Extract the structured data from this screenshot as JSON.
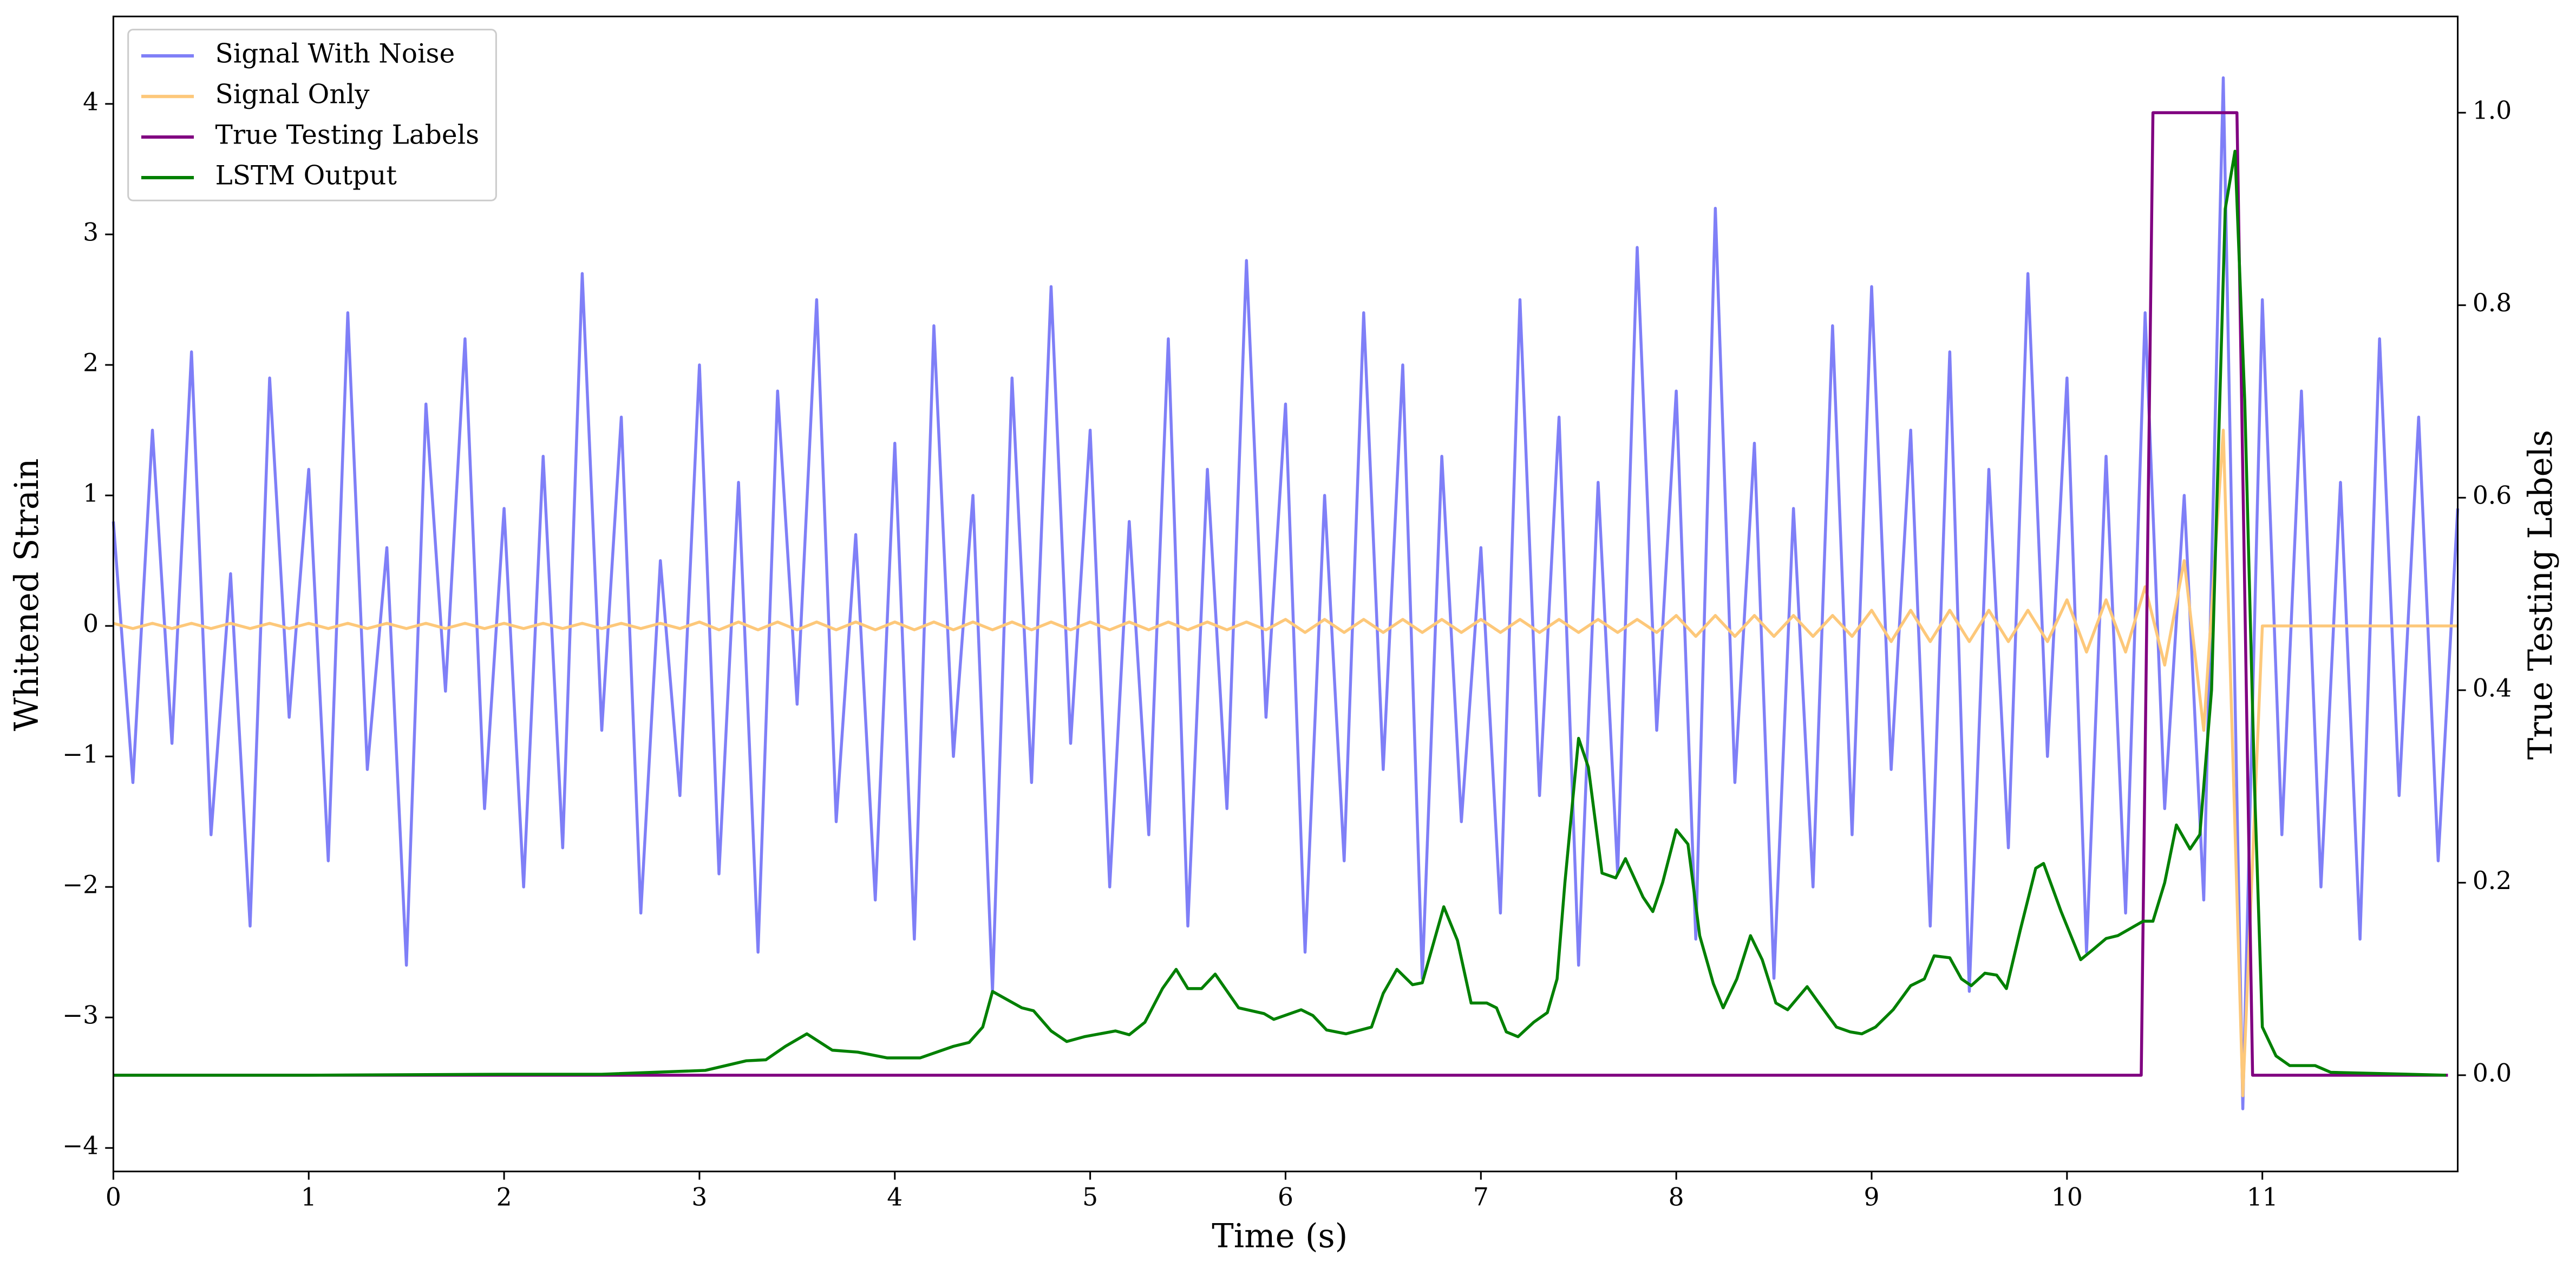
{
  "chart_data": {
    "type": "line",
    "xlabel": "Time (s)",
    "ylabel": "Whitened Strain",
    "y2label": "True Testing Labels",
    "xlim": [
      0,
      12
    ],
    "ylim": [
      -4.18,
      4.67
    ],
    "y2lim": [
      -0.1,
      1.1
    ],
    "xticks": [
      0,
      1,
      2,
      3,
      4,
      5,
      6,
      7,
      8,
      9,
      10,
      11
    ],
    "yticks": [
      {
        "value": -4,
        "label": "−4"
      },
      {
        "value": -3,
        "label": "−3"
      },
      {
        "value": -2,
        "label": "−2"
      },
      {
        "value": -1,
        "label": "−1"
      },
      0,
      1,
      2,
      3,
      4
    ],
    "y2ticks": [
      {
        "value": 0,
        "label": "0.0"
      },
      0.2,
      0.4,
      0.6,
      0.8,
      {
        "value": 1,
        "label": "1.0"
      }
    ],
    "legend": "upper left",
    "x": [
      0,
      0.1,
      0.2,
      0.3,
      0.4,
      0.5,
      0.6,
      0.7,
      0.8,
      0.9,
      1,
      1.1,
      1.2,
      1.3,
      1.4,
      1.5,
      1.6,
      1.7,
      1.8,
      1.9,
      2,
      2.1,
      2.2,
      2.3,
      2.4,
      2.5,
      2.6,
      2.7,
      2.8,
      2.9,
      3,
      3.1,
      3.2,
      3.3,
      3.4,
      3.5,
      3.6,
      3.7,
      3.8,
      3.9,
      4,
      4.1,
      4.2,
      4.3,
      4.4,
      4.5,
      4.6,
      4.7,
      4.8,
      4.9,
      5,
      5.1,
      5.2,
      5.3,
      5.4,
      5.5,
      5.6,
      5.7,
      5.8,
      5.9,
      6,
      6.1,
      6.2,
      6.3,
      6.4,
      6.5,
      6.6,
      6.7,
      6.8,
      6.9,
      7,
      7.1,
      7.2,
      7.3,
      7.4,
      7.5,
      7.6,
      7.7,
      7.8,
      7.9,
      8,
      8.1,
      8.2,
      8.3,
      8.4,
      8.5,
      8.6,
      8.7,
      8.8,
      8.9,
      9,
      9.1,
      9.2,
      9.3,
      9.4,
      9.5,
      9.6,
      9.7,
      9.8,
      9.9,
      10,
      10.1,
      10.2,
      10.3,
      10.4,
      10.5,
      10.6,
      10.7,
      10.8,
      10.9,
      11,
      11.1,
      11.2,
      11.3,
      11.4,
      11.5,
      11.6,
      11.7,
      11.8,
      11.9,
      12
    ],
    "series": [
      {
        "name": "Signal With Noise",
        "color": "#7f7ff7",
        "values": [
          0.8,
          -1.2,
          1.5,
          -0.9,
          2.1,
          -1.6,
          0.4,
          -2.3,
          1.9,
          -0.7,
          1.2,
          -1.8,
          2.4,
          -1.1,
          0.6,
          -2.6,
          1.7,
          -0.5,
          2.2,
          -1.4,
          0.9,
          -2.0,
          1.3,
          -1.7,
          2.7,
          -0.8,
          1.6,
          -2.2,
          0.5,
          -1.3,
          2.0,
          -1.9,
          1.1,
          -2.5,
          1.8,
          -0.6,
          2.5,
          -1.5,
          0.7,
          -2.1,
          1.4,
          -2.4,
          2.3,
          -1.0,
          1.0,
          -2.8,
          1.9,
          -1.2,
          2.6,
          -0.9,
          1.5,
          -2.0,
          0.8,
          -1.6,
          2.2,
          -2.3,
          1.2,
          -1.4,
          2.8,
          -0.7,
          1.7,
          -2.5,
          1.0,
          -1.8,
          2.4,
          -1.1,
          2.0,
          -2.7,
          1.3,
          -1.5,
          0.6,
          -2.2,
          2.5,
          -1.3,
          1.6,
          -2.6,
          1.1,
          -1.9,
          2.9,
          -0.8,
          1.8,
          -2.4,
          3.2,
          -1.2,
          1.4,
          -2.7,
          0.9,
          -2.0,
          2.3,
          -1.6,
          2.6,
          -1.1,
          1.5,
          -2.3,
          2.1,
          -2.8,
          1.2,
          -1.7,
          2.7,
          -1.0,
          1.9,
          -2.5,
          1.3,
          -2.2,
          2.4,
          -1.4,
          1.0,
          -2.1,
          4.2,
          -3.7,
          2.5,
          -1.6,
          1.8,
          -2.0,
          1.1,
          -2.4,
          2.2,
          -1.3,
          1.6,
          -1.8,
          0.9
        ]
      },
      {
        "name": "Signal Only",
        "color": "#fdc87a",
        "values": [
          0.02,
          -0.02,
          0.02,
          -0.02,
          0.02,
          -0.02,
          0.02,
          -0.02,
          0.02,
          -0.02,
          0.02,
          -0.02,
          0.02,
          -0.02,
          0.02,
          -0.02,
          0.02,
          -0.02,
          0.02,
          -0.02,
          0.02,
          -0.02,
          0.02,
          -0.02,
          0.02,
          -0.02,
          0.02,
          -0.02,
          0.02,
          -0.02,
          0.03,
          -0.03,
          0.03,
          -0.03,
          0.03,
          -0.03,
          0.03,
          -0.03,
          0.03,
          -0.03,
          0.03,
          -0.03,
          0.03,
          -0.03,
          0.03,
          -0.03,
          0.03,
          -0.03,
          0.03,
          -0.03,
          0.03,
          -0.03,
          0.03,
          -0.03,
          0.03,
          -0.03,
          0.03,
          -0.03,
          0.03,
          -0.03,
          0.05,
          -0.05,
          0.05,
          -0.05,
          0.05,
          -0.05,
          0.05,
          -0.05,
          0.05,
          -0.05,
          0.05,
          -0.05,
          0.05,
          -0.05,
          0.05,
          -0.05,
          0.05,
          -0.05,
          0.05,
          -0.05,
          0.08,
          -0.08,
          0.08,
          -0.08,
          0.08,
          -0.08,
          0.08,
          -0.08,
          0.08,
          -0.08,
          0.12,
          -0.12,
          0.12,
          -0.12,
          0.12,
          -0.12,
          0.12,
          -0.12,
          0.12,
          -0.12,
          0.2,
          -0.2,
          0.2,
          -0.2,
          0.3,
          -0.3,
          0.5,
          -0.8,
          1.5,
          -3.6,
          0,
          0,
          0,
          0,
          0,
          0,
          0,
          0,
          0,
          0,
          0
        ]
      },
      {
        "name": "True Testing Labels",
        "color": "#800080",
        "axis": "y2",
        "x": [
          0,
          10.38,
          10.44,
          10.87,
          10.95,
          11.95
        ],
        "values": [
          0,
          0,
          1,
          1,
          0,
          0
        ]
      },
      {
        "name": "LSTM Output",
        "color": "#008000",
        "axis": "y2",
        "x": [
          0,
          1,
          2,
          2.5,
          3.03,
          3.24,
          3.34,
          3.44,
          3.55,
          3.68,
          3.81,
          3.96,
          4.13,
          4.3,
          4.38,
          4.45,
          4.5,
          4.65,
          4.71,
          4.8,
          4.88,
          4.97,
          5.13,
          5.2,
          5.28,
          5.37,
          5.44,
          5.5,
          5.57,
          5.64,
          5.76,
          5.89,
          5.94,
          6.08,
          6.14,
          6.21,
          6.31,
          6.44,
          6.5,
          6.57,
          6.65,
          6.7,
          6.81,
          6.88,
          6.95,
          7.03,
          7.08,
          7.13,
          7.19,
          7.27,
          7.34,
          7.39,
          7.43,
          7.5,
          7.55,
          7.62,
          7.69,
          7.74,
          7.83,
          7.88,
          7.93,
          8.0,
          8.06,
          8.12,
          8.19,
          8.24,
          8.31,
          8.38,
          8.44,
          8.51,
          8.57,
          8.67,
          8.73,
          8.82,
          8.89,
          8.95,
          9.02,
          9.11,
          9.2,
          9.27,
          9.32,
          9.4,
          9.46,
          9.51,
          9.58,
          9.64,
          9.69,
          9.76,
          9.84,
          9.88,
          9.97,
          10.07,
          10.13,
          10.2,
          10.26,
          10.39,
          10.44,
          10.5,
          10.56,
          10.63,
          10.68,
          10.74,
          10.81,
          10.86,
          10.91,
          10.96,
          11.0,
          11.07,
          11.14,
          11.27,
          11.35,
          11.94
        ],
        "values": [
          0,
          0,
          0.001,
          0.001,
          0.005,
          0.015,
          0.016,
          0.03,
          0.043,
          0.026,
          0.024,
          0.018,
          0.018,
          0.03,
          0.034,
          0.05,
          0.087,
          0.07,
          0.067,
          0.046,
          0.035,
          0.04,
          0.046,
          0.042,
          0.055,
          0.09,
          0.11,
          0.09,
          0.09,
          0.105,
          0.07,
          0.064,
          0.058,
          0.068,
          0.062,
          0.047,
          0.043,
          0.05,
          0.085,
          0.11,
          0.094,
          0.096,
          0.175,
          0.14,
          0.075,
          0.075,
          0.07,
          0.045,
          0.04,
          0.055,
          0.065,
          0.1,
          0.2,
          0.35,
          0.32,
          0.21,
          0.205,
          0.225,
          0.185,
          0.17,
          0.2,
          0.255,
          0.24,
          0.145,
          0.095,
          0.07,
          0.1,
          0.145,
          0.12,
          0.075,
          0.068,
          0.092,
          0.075,
          0.05,
          0.045,
          0.043,
          0.05,
          0.068,
          0.093,
          0.1,
          0.124,
          0.122,
          0.1,
          0.093,
          0.106,
          0.104,
          0.09,
          0.15,
          0.215,
          0.22,
          0.17,
          0.12,
          0.13,
          0.142,
          0.145,
          0.16,
          0.16,
          0.2,
          0.26,
          0.235,
          0.25,
          0.4,
          0.9,
          0.96,
          0.7,
          0.3,
          0.05,
          0.02,
          0.01,
          0.01,
          0.003,
          0
        ]
      }
    ]
  }
}
